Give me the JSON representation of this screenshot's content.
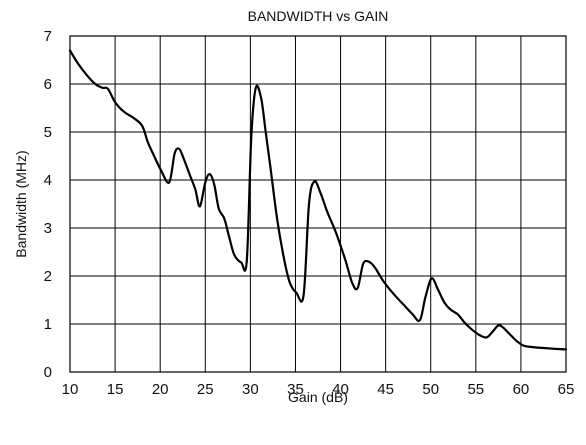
{
  "chart_data": {
    "type": "line",
    "title": "BANDWIDTH vs GAIN",
    "xlabel": "Gain (dB)",
    "ylabel": "Bandwidth (MHz)",
    "xlim": [
      10,
      65
    ],
    "ylim": [
      0,
      7
    ],
    "x_ticks": [
      10,
      15,
      20,
      25,
      30,
      35,
      40,
      45,
      50,
      55,
      60,
      65
    ],
    "x_tick_labels": [
      "10",
      "15",
      "20",
      "25",
      "30",
      "35",
      "40",
      "45",
      "50",
      "55",
      "60",
      "65"
    ],
    "y_ticks": [
      0,
      1,
      2,
      3,
      4,
      5,
      6,
      7
    ],
    "y_tick_labels": [
      "0",
      "1",
      "2",
      "3",
      "4",
      "5",
      "6",
      "7"
    ],
    "grid": true,
    "legend": "none",
    "line_color": "#000000",
    "series": [
      {
        "x": [
          10,
          10.8,
          11.8,
          12.8,
          13.6,
          14.2,
          15.0,
          16.0,
          17.0,
          18.0,
          18.6,
          19.2,
          20.1,
          21.0,
          21.6,
          22.1,
          22.6,
          23.3,
          23.9,
          24.4,
          25.0,
          25.5,
          26.0,
          26.5,
          27.1,
          27.6,
          28.2,
          29.0,
          29.6,
          30.1,
          30.6,
          31.2,
          31.7,
          32.2,
          33.0,
          33.8,
          34.4,
          35.1,
          35.9,
          36.5,
          37.1,
          37.8,
          38.5,
          39.5,
          40.5,
          41.3,
          41.9,
          42.5,
          43.1,
          43.8,
          44.8,
          46.0,
          47.0,
          48.0,
          48.8,
          49.4,
          50.1,
          50.8,
          51.5,
          52.2,
          53.0,
          53.8,
          54.6,
          55.4,
          56.2,
          56.9,
          57.5,
          58.0,
          58.7,
          59.5,
          60.3,
          61.2,
          62.5,
          64.0,
          65.0
        ],
        "y": [
          6.7,
          6.45,
          6.2,
          6.0,
          5.92,
          5.9,
          5.62,
          5.42,
          5.3,
          5.13,
          4.8,
          4.55,
          4.2,
          3.95,
          4.55,
          4.65,
          4.45,
          4.1,
          3.8,
          3.45,
          3.95,
          4.12,
          3.9,
          3.4,
          3.2,
          2.85,
          2.45,
          2.28,
          2.32,
          4.9,
          5.92,
          5.7,
          5.0,
          4.3,
          3.15,
          2.3,
          1.85,
          1.65,
          1.6,
          3.5,
          3.97,
          3.72,
          3.35,
          2.9,
          2.35,
          1.85,
          1.75,
          2.25,
          2.3,
          2.18,
          1.88,
          1.6,
          1.4,
          1.2,
          1.08,
          1.55,
          1.95,
          1.72,
          1.45,
          1.3,
          1.2,
          1.02,
          0.88,
          0.77,
          0.72,
          0.85,
          0.97,
          0.93,
          0.8,
          0.65,
          0.55,
          0.52,
          0.5,
          0.48,
          0.47
        ]
      }
    ]
  }
}
